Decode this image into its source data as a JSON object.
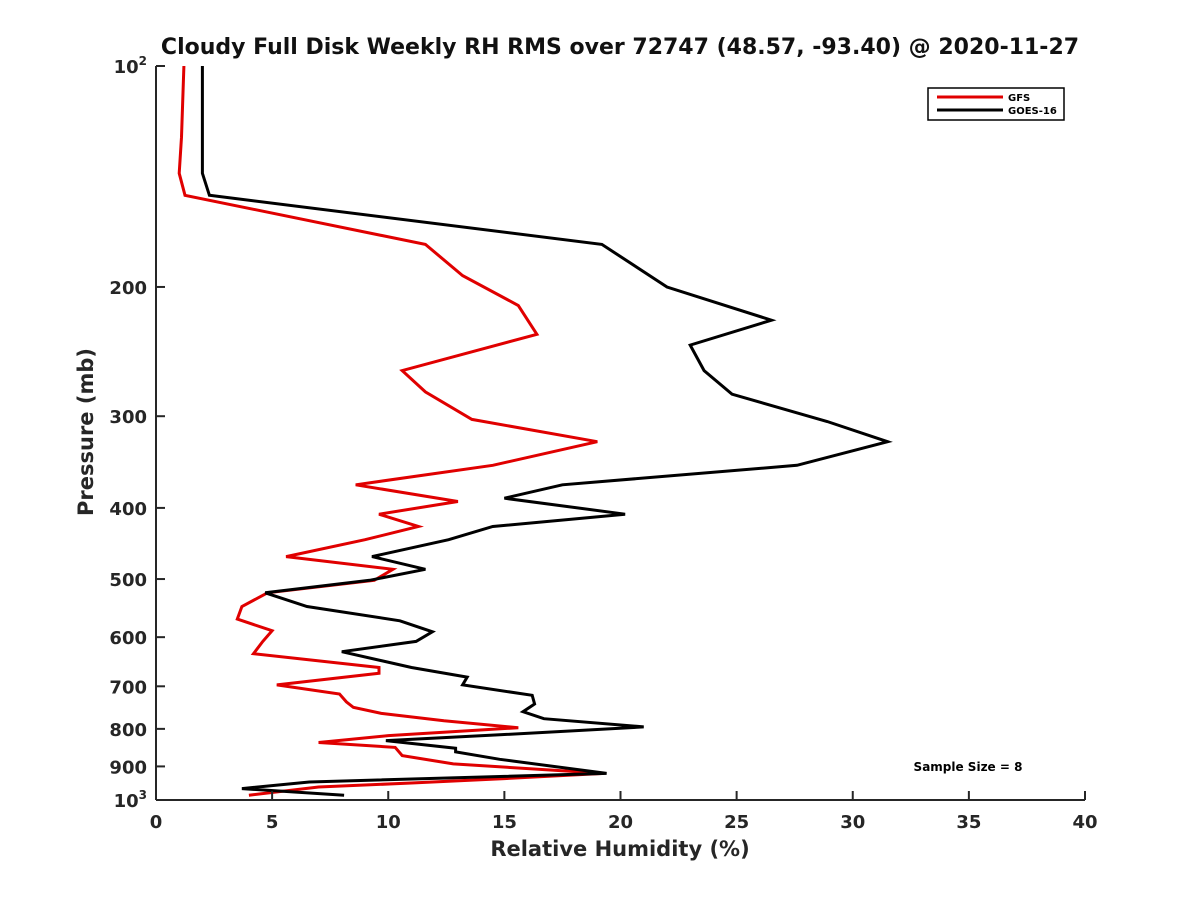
{
  "chart_data": {
    "type": "line",
    "title": "Cloudy Full Disk Weekly RH RMS over 72747 (48.57, -93.40) @ 2020-11-27",
    "xlabel": "Relative Humidity (%)",
    "ylabel": "Pressure (mb)",
    "xlim": [
      0,
      40
    ],
    "ylim": [
      100,
      1000
    ],
    "yscale": "log",
    "y_reversed": true,
    "grid": false,
    "legend_position": "top-right",
    "annotation": "Sample Size = 8",
    "x_ticks": [
      "0",
      "5",
      "10",
      "15",
      "20",
      "25",
      "30",
      "35",
      "40"
    ],
    "y_ticks": [
      {
        "value": 100,
        "base": "10",
        "exp": "2"
      },
      {
        "value": 200,
        "base": "200",
        "exp": ""
      },
      {
        "value": 300,
        "base": "300",
        "exp": ""
      },
      {
        "value": 400,
        "base": "400",
        "exp": ""
      },
      {
        "value": 500,
        "base": "500",
        "exp": ""
      },
      {
        "value": 600,
        "base": "600",
        "exp": ""
      },
      {
        "value": 700,
        "base": "700",
        "exp": ""
      },
      {
        "value": 800,
        "base": "800",
        "exp": ""
      },
      {
        "value": 900,
        "base": "900",
        "exp": ""
      },
      {
        "value": 1000,
        "base": "10",
        "exp": "3"
      }
    ],
    "series": [
      {
        "name": "GFS",
        "color": "#e00000",
        "points": [
          [
            1.2,
            100
          ],
          [
            1.1,
            125
          ],
          [
            1.0,
            140
          ],
          [
            1.25,
            150
          ],
          [
            11.6,
            175
          ],
          [
            13.2,
            193
          ],
          [
            15.6,
            212
          ],
          [
            16.4,
            232
          ],
          [
            10.6,
            260
          ],
          [
            11.6,
            278
          ],
          [
            13.6,
            303
          ],
          [
            19.0,
            325
          ],
          [
            14.5,
            350
          ],
          [
            8.6,
            372
          ],
          [
            13.0,
            392
          ],
          [
            9.6,
            408
          ],
          [
            11.3,
            424
          ],
          [
            9.0,
            442
          ],
          [
            5.6,
            466
          ],
          [
            10.2,
            485
          ],
          [
            9.4,
            502
          ],
          [
            4.8,
            522
          ],
          [
            3.7,
            545
          ],
          [
            3.5,
            567
          ],
          [
            5.0,
            588
          ],
          [
            4.6,
            608
          ],
          [
            4.2,
            632
          ],
          [
            9.6,
            660
          ],
          [
            9.6,
            672
          ],
          [
            5.2,
            697
          ],
          [
            7.9,
            717
          ],
          [
            8.2,
            735
          ],
          [
            8.5,
            748
          ],
          [
            9.7,
            762
          ],
          [
            12.4,
            780
          ],
          [
            15.6,
            797
          ],
          [
            10.0,
            817
          ],
          [
            7.0,
            835
          ],
          [
            10.3,
            848
          ],
          [
            10.6,
            870
          ],
          [
            12.8,
            893
          ],
          [
            19.3,
            920
          ],
          [
            15.0,
            935
          ],
          [
            11.0,
            948
          ],
          [
            7.0,
            960
          ],
          [
            4.0,
            985
          ]
        ]
      },
      {
        "name": "GOES-16",
        "color": "#000000",
        "points": [
          [
            2.0,
            100
          ],
          [
            2.0,
            125
          ],
          [
            2.0,
            140
          ],
          [
            2.3,
            150
          ],
          [
            19.2,
            175
          ],
          [
            22.0,
            200
          ],
          [
            26.5,
            222
          ],
          [
            23.0,
            240
          ],
          [
            23.6,
            260
          ],
          [
            24.8,
            280
          ],
          [
            28.9,
            305
          ],
          [
            31.5,
            325
          ],
          [
            27.6,
            350
          ],
          [
            17.5,
            372
          ],
          [
            15.0,
            388
          ],
          [
            20.2,
            408
          ],
          [
            14.5,
            424
          ],
          [
            12.6,
            442
          ],
          [
            9.3,
            466
          ],
          [
            11.6,
            485
          ],
          [
            9.2,
            502
          ],
          [
            4.7,
            522
          ],
          [
            6.5,
            545
          ],
          [
            10.5,
            570
          ],
          [
            11.9,
            590
          ],
          [
            11.2,
            608
          ],
          [
            8.0,
            628
          ],
          [
            11.0,
            660
          ],
          [
            13.4,
            680
          ],
          [
            13.2,
            697
          ],
          [
            16.2,
            720
          ],
          [
            16.3,
            740
          ],
          [
            15.8,
            758
          ],
          [
            16.7,
            775
          ],
          [
            21.0,
            795
          ],
          [
            14.8,
            815
          ],
          [
            9.9,
            830
          ],
          [
            12.9,
            850
          ],
          [
            12.9,
            860
          ],
          [
            14.8,
            880
          ],
          [
            19.4,
            920
          ],
          [
            6.6,
            945
          ],
          [
            3.7,
            965
          ],
          [
            8.1,
            985
          ]
        ]
      }
    ]
  }
}
